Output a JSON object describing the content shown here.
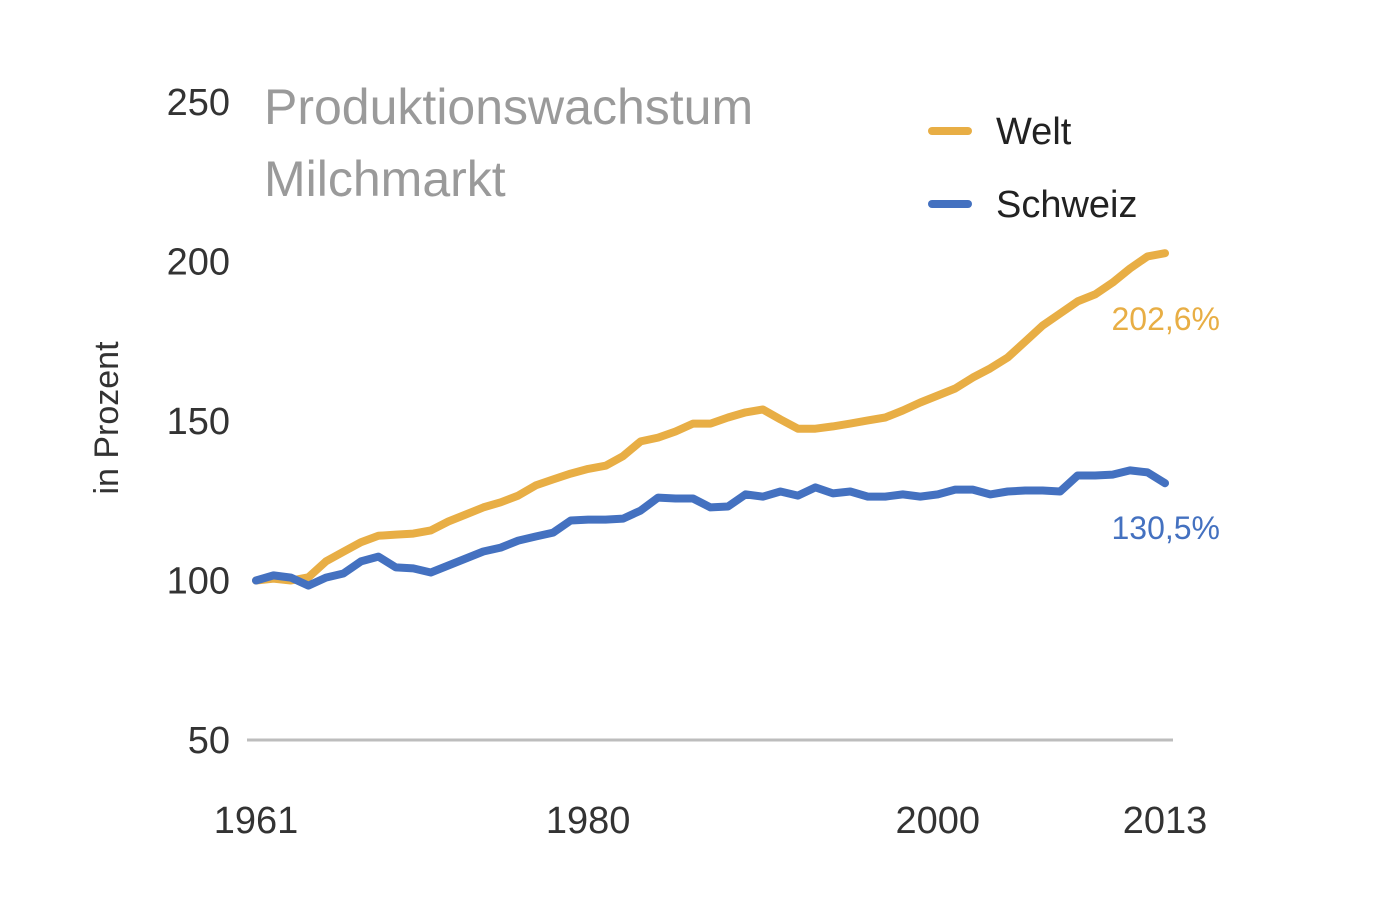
{
  "chart_data": {
    "type": "line",
    "title": [
      "Produktionswachstum",
      "Milchmarkt"
    ],
    "xlabel": "",
    "ylabel": "in Prozent",
    "ylim": [
      50,
      250
    ],
    "xlim": [
      1961,
      2013
    ],
    "yticks": [
      "250",
      "200",
      "150",
      "100",
      "50"
    ],
    "xticks": [
      "1961",
      "1980",
      "2000",
      "2013"
    ],
    "grid": false,
    "legend_position": "top-right",
    "x": [
      1961,
      1962,
      1963,
      1964,
      1965,
      1966,
      1967,
      1968,
      1969,
      1970,
      1971,
      1972,
      1973,
      1974,
      1975,
      1976,
      1977,
      1978,
      1979,
      1980,
      1981,
      1982,
      1983,
      1984,
      1985,
      1986,
      1987,
      1988,
      1989,
      1990,
      1991,
      1992,
      1993,
      1994,
      1995,
      1996,
      1997,
      1998,
      1999,
      2000,
      2001,
      2002,
      2003,
      2004,
      2005,
      2006,
      2007,
      2008,
      2009,
      2010,
      2011,
      2012,
      2013
    ],
    "series": [
      {
        "name": "Welt",
        "color": "#e8ae45",
        "end_label": "202,6%",
        "values": [
          100,
          100.6,
          100,
          101,
          106,
          109,
          112,
          114,
          114.4,
          114.7,
          115.7,
          118.5,
          120.7,
          122.9,
          124.5,
          126.6,
          129.8,
          131.7,
          133.5,
          135,
          136,
          139,
          143.6,
          144.8,
          146.7,
          149.2,
          149.2,
          151.1,
          152.7,
          153.6,
          150.5,
          147.6,
          147.6,
          148.3,
          149.2,
          150.2,
          151.1,
          153.3,
          155.8,
          158,
          160.2,
          163.6,
          166.5,
          169.9,
          174.9,
          179.9,
          183.7,
          187.5,
          189.7,
          193.4,
          197.8,
          201.6,
          202.6
        ]
      },
      {
        "name": "Schweiz",
        "color": "#4471c0",
        "end_label": "130,5%",
        "values": [
          100,
          101.6,
          100.9,
          98.4,
          100.9,
          102.2,
          106,
          107.5,
          104.1,
          103.8,
          102.5,
          104.7,
          106.9,
          109.1,
          110.3,
          112.5,
          113.8,
          115,
          118.8,
          119.1,
          119.1,
          119.4,
          121.9,
          126,
          125.7,
          125.7,
          122.9,
          123.2,
          127,
          126.3,
          127.9,
          126.6,
          129.2,
          127.3,
          127.9,
          126.3,
          126.3,
          127,
          126.3,
          127,
          128.5,
          128.5,
          127,
          127.9,
          128.2,
          128.2,
          127.9,
          132.9,
          132.9,
          133.2,
          134.5,
          133.9,
          130.5
        ]
      }
    ]
  }
}
